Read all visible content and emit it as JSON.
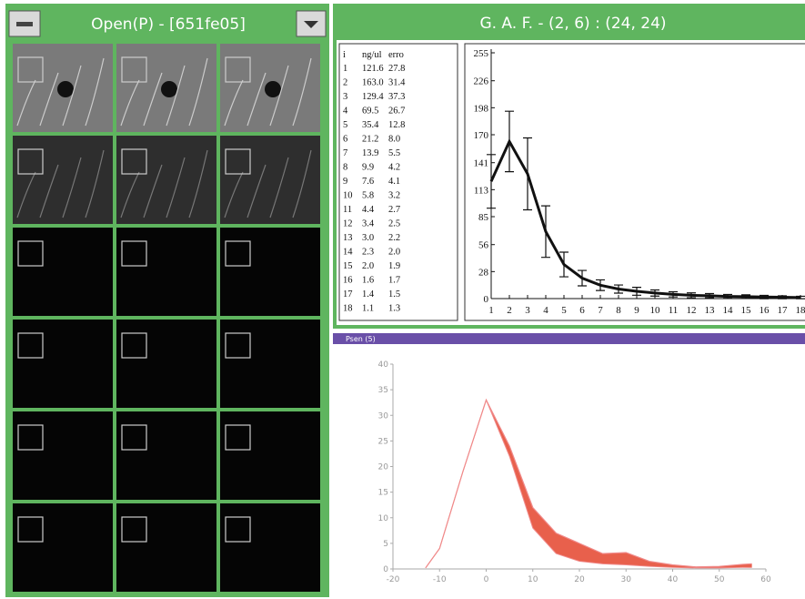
{
  "left_window": {
    "title": "Open(P) - [651fe05]"
  },
  "right_window": {
    "title": "G. A. F. - (2, 6) : (24, 24)"
  },
  "bottom_window": {
    "title": "Psen (5)"
  },
  "table": {
    "header": [
      "i",
      "ng/ul",
      "erro"
    ],
    "rows": [
      [
        "1",
        "121.6",
        "27.8"
      ],
      [
        "2",
        "163.0",
        "31.4"
      ],
      [
        "3",
        "129.4",
        "37.3"
      ],
      [
        "4",
        "69.5",
        "26.7"
      ],
      [
        "5",
        "35.4",
        "12.8"
      ],
      [
        "6",
        "21.2",
        "8.0"
      ],
      [
        "7",
        "13.9",
        "5.5"
      ],
      [
        "8",
        "9.9",
        "4.2"
      ],
      [
        "9",
        "7.6",
        "4.1"
      ],
      [
        "10",
        "5.8",
        "3.2"
      ],
      [
        "11",
        "4.4",
        "2.7"
      ],
      [
        "12",
        "3.4",
        "2.5"
      ],
      [
        "13",
        "3.0",
        "2.2"
      ],
      [
        "14",
        "2.3",
        "2.0"
      ],
      [
        "15",
        "2.0",
        "1.9"
      ],
      [
        "16",
        "1.6",
        "1.7"
      ],
      [
        "17",
        "1.4",
        "1.5"
      ],
      [
        "18",
        "1.1",
        "1.3"
      ]
    ]
  },
  "chart_data": [
    {
      "type": "line",
      "color": "#111111",
      "x": [
        1,
        2,
        3,
        4,
        5,
        6,
        7,
        8,
        9,
        10,
        11,
        12,
        13,
        14,
        15,
        16,
        17,
        18
      ],
      "values": [
        121.6,
        163.0,
        129.4,
        69.5,
        35.4,
        21.2,
        13.9,
        9.9,
        7.6,
        5.8,
        4.4,
        3.4,
        3.0,
        2.3,
        2.0,
        1.6,
        1.4,
        1.1
      ],
      "errors": [
        27.8,
        31.4,
        37.3,
        26.7,
        12.8,
        8.0,
        5.5,
        4.2,
        4.1,
        3.2,
        2.7,
        2.5,
        2.2,
        2.0,
        1.9,
        1.7,
        1.5,
        1.3
      ],
      "xlim": [
        1,
        18
      ],
      "ylim": [
        0,
        255
      ],
      "xticks": [
        1,
        2,
        3,
        4,
        5,
        6,
        7,
        8,
        9,
        10,
        11,
        12,
        13,
        14,
        15,
        16,
        17,
        18
      ],
      "yticks": [
        0,
        28,
        56,
        85,
        113,
        141,
        170,
        198,
        226,
        255
      ]
    },
    {
      "type": "band",
      "x": [
        -13,
        -10,
        -5,
        0,
        5,
        10,
        15,
        20,
        25,
        30,
        35,
        40,
        45,
        50,
        55,
        57
      ],
      "series": [
        {
          "color": "#e8604c",
          "values": [
            0.2,
            4,
            19,
            33,
            22,
            8,
            3,
            1.5,
            1,
            0.8,
            0.5,
            0.3,
            0.2,
            0.2,
            0.3,
            0.3
          ]
        },
        {
          "color": "#f08a8a",
          "values": [
            0.2,
            4,
            19,
            33,
            24,
            12,
            7,
            5,
            3,
            3.2,
            1.5,
            0.8,
            0.4,
            0.5,
            0.9,
            1.0
          ]
        }
      ],
      "xlim": [
        -20,
        60
      ],
      "ylim": [
        0,
        40
      ],
      "xticks": [
        -20,
        -10,
        0,
        10,
        20,
        30,
        40,
        50,
        60
      ],
      "yticks": [
        0,
        5,
        10,
        15,
        20,
        25,
        30,
        35,
        40
      ]
    }
  ]
}
